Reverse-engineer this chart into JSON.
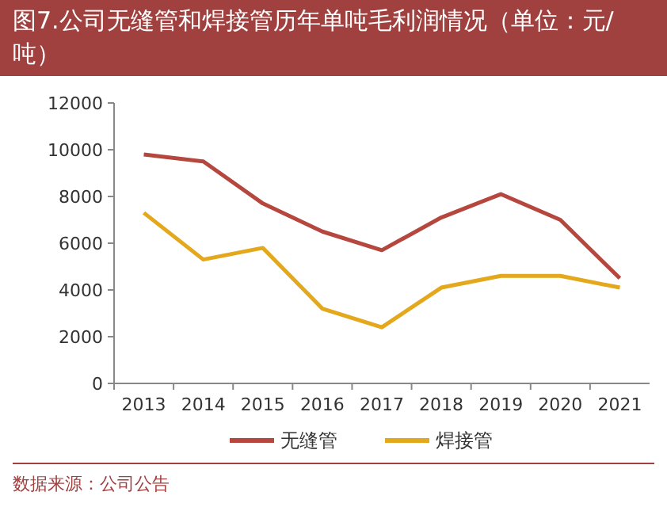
{
  "chart_data": {
    "type": "line",
    "title": "图7.公司无缝管和焊接管历年单吨毛利润情况（单位：元/吨）",
    "categories": [
      "2013",
      "2014",
      "2015",
      "2016",
      "2017",
      "2018",
      "2019",
      "2020",
      "2021"
    ],
    "series": [
      {
        "name": "无缝管",
        "color": "#b5473f",
        "values": [
          9800,
          9500,
          7700,
          6500,
          5700,
          7100,
          8100,
          7000,
          4500
        ]
      },
      {
        "name": "焊接管",
        "color": "#e3a81c",
        "values": [
          7300,
          5300,
          5800,
          3200,
          2400,
          4100,
          4600,
          4600,
          4100
        ]
      }
    ],
    "ylim": [
      0,
      12000
    ],
    "yticks": [
      0,
      2000,
      4000,
      6000,
      8000,
      10000,
      12000
    ],
    "legend": "bottom",
    "marker": "none",
    "line_style": "solid",
    "annotations": [
      "数据来源：公司公告"
    ]
  }
}
